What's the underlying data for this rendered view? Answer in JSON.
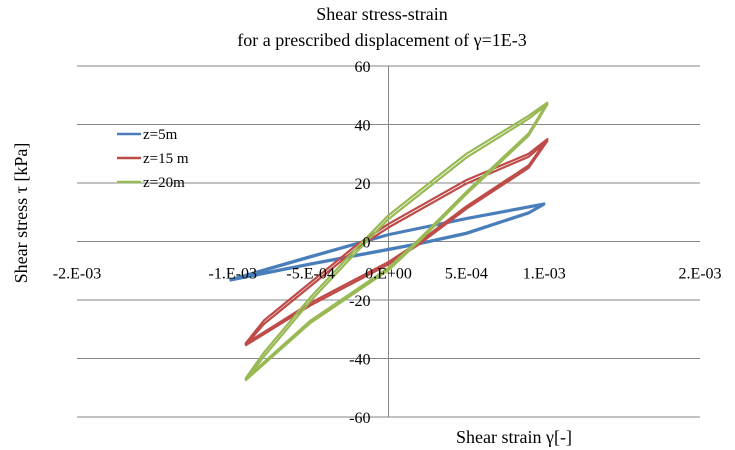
{
  "chart_data": {
    "type": "line",
    "title": "Shear stress-strain",
    "subtitle": "for a prescribed displacement of γ=1E-3",
    "xlabel": "Shear strain  γ[-]",
    "ylabel": "Shear stress τ [kPa]",
    "xlim": [
      -0.002,
      0.002
    ],
    "ylim": [
      -60,
      60
    ],
    "x_ticks": [
      -0.002,
      -0.001,
      -0.0005,
      0,
      0.0005,
      0.001,
      0.002
    ],
    "x_tick_labels": [
      "-2.E-03",
      "-1.E-03",
      "-5.E-04",
      "0.E+00",
      "5.E-04",
      "1.E-03",
      "2.E-03"
    ],
    "y_ticks": [
      -60,
      -40,
      -20,
      0,
      20,
      40,
      60
    ],
    "y_tick_labels": [
      "-60",
      "-40",
      "-20",
      "0",
      "20",
      "40",
      "60"
    ],
    "grid": "horizontal",
    "legend_position": "upper-left",
    "series": [
      {
        "name": "z=5m",
        "color": "#4a7ebb",
        "loops": [
          [
            [
              -0.00102,
              -13
            ],
            [
              -0.0005,
              -5
            ],
            [
              0,
              2.5
            ],
            [
              0.0005,
              8
            ],
            [
              0.001,
              13
            ],
            [
              0.0009,
              10
            ],
            [
              0.0005,
              3
            ],
            [
              0.0002,
              -0.5
            ],
            [
              0,
              -2.5
            ],
            [
              -0.0005,
              -7.5
            ],
            [
              -0.00102,
              -13
            ]
          ],
          [
            [
              -0.00102,
              -13.4
            ],
            [
              -0.0005,
              -5.4
            ],
            [
              0,
              2.2
            ],
            [
              0.0005,
              7.7
            ],
            [
              0.001,
              12.6
            ],
            [
              0.0009,
              9.6
            ],
            [
              0.0005,
              2.6
            ],
            [
              0.0002,
              -0.9
            ],
            [
              0,
              -2.9
            ],
            [
              -0.0005,
              -7.9
            ],
            [
              -0.00102,
              -13.4
            ]
          ]
        ]
      },
      {
        "name": "z=15 m",
        "color": "#be4b48",
        "loops": [
          [
            [
              -0.00092,
              -35
            ],
            [
              -0.0008,
              -27
            ],
            [
              -0.0005,
              -14
            ],
            [
              -0.0002,
              -1
            ],
            [
              0,
              6
            ],
            [
              0.0005,
              21
            ],
            [
              0.0009,
              30
            ],
            [
              0.00102,
              35
            ],
            [
              0.0009,
              26
            ],
            [
              0.0005,
              12
            ],
            [
              0.0002,
              0
            ],
            [
              0,
              -7
            ],
            [
              -0.0005,
              -21
            ],
            [
              -0.00092,
              -35
            ]
          ],
          [
            [
              -0.00092,
              -35.6
            ],
            [
              -0.0008,
              -28.2
            ],
            [
              -0.0005,
              -15.2
            ],
            [
              -0.0002,
              -2.2
            ],
            [
              0,
              4.8
            ],
            [
              0.0005,
              19.8
            ],
            [
              0.0009,
              29
            ],
            [
              0.00102,
              34.4
            ],
            [
              0.0009,
              25.2
            ],
            [
              0.0005,
              11.2
            ],
            [
              0.0002,
              -0.8
            ],
            [
              0,
              -7.8
            ],
            [
              -0.0005,
              -21.8
            ],
            [
              -0.00092,
              -35.6
            ]
          ]
        ]
      },
      {
        "name": "z=20m",
        "color": "#98b954",
        "loops": [
          [
            [
              -0.00092,
              -47
            ],
            [
              -0.0008,
              -38
            ],
            [
              -0.0005,
              -19
            ],
            [
              -0.0002,
              -2
            ],
            [
              0,
              9
            ],
            [
              0.0005,
              30
            ],
            [
              0.0009,
              43
            ],
            [
              0.00102,
              47.5
            ],
            [
              0.0009,
              37
            ],
            [
              0.0005,
              17
            ],
            [
              0.0002,
              1
            ],
            [
              0,
              -9
            ],
            [
              -0.0005,
              -27
            ],
            [
              -0.00092,
              -47
            ]
          ],
          [
            [
              -0.00092,
              -47.6
            ],
            [
              -0.0008,
              -39.3
            ],
            [
              -0.0005,
              -20.3
            ],
            [
              -0.0002,
              -3.3
            ],
            [
              0,
              7.7
            ],
            [
              0.0005,
              28.7
            ],
            [
              0.0009,
              42
            ],
            [
              0.00102,
              46.9
            ],
            [
              0.0009,
              36.2
            ],
            [
              0.0005,
              16.2
            ],
            [
              0.0002,
              0.2
            ],
            [
              0,
              -9.8
            ],
            [
              -0.0005,
              -27.8
            ],
            [
              -0.00092,
              -47.6
            ]
          ]
        ]
      }
    ]
  }
}
